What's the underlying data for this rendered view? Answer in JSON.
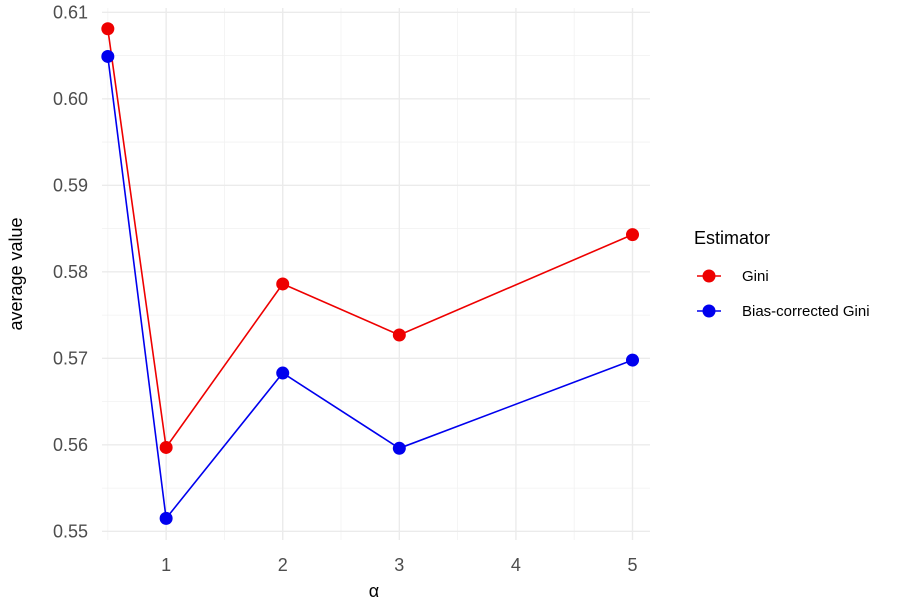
{
  "chart_data": {
    "type": "line",
    "xlabel": "α",
    "ylabel": "average value",
    "x": [
      0.5,
      1,
      2,
      3,
      5
    ],
    "x_ticks": [
      1,
      2,
      3,
      4,
      5
    ],
    "y_ticks": [
      "0.55",
      "0.56",
      "0.57",
      "0.58",
      "0.59",
      "0.60",
      "0.61"
    ],
    "xlim": [
      0.45,
      5.15
    ],
    "ylim": [
      0.549,
      0.6105
    ],
    "grid": true,
    "legend": {
      "title": "Estimator",
      "placement": "right"
    },
    "series": [
      {
        "name": "Gini",
        "color": "#ee0000",
        "values": [
          0.6081,
          0.5597,
          0.5786,
          0.5727,
          0.5843
        ]
      },
      {
        "name": "Bias-corrected Gini",
        "color": "#0000ee",
        "values": [
          0.6049,
          0.5515,
          0.5683,
          0.5596,
          0.5698
        ]
      }
    ]
  }
}
